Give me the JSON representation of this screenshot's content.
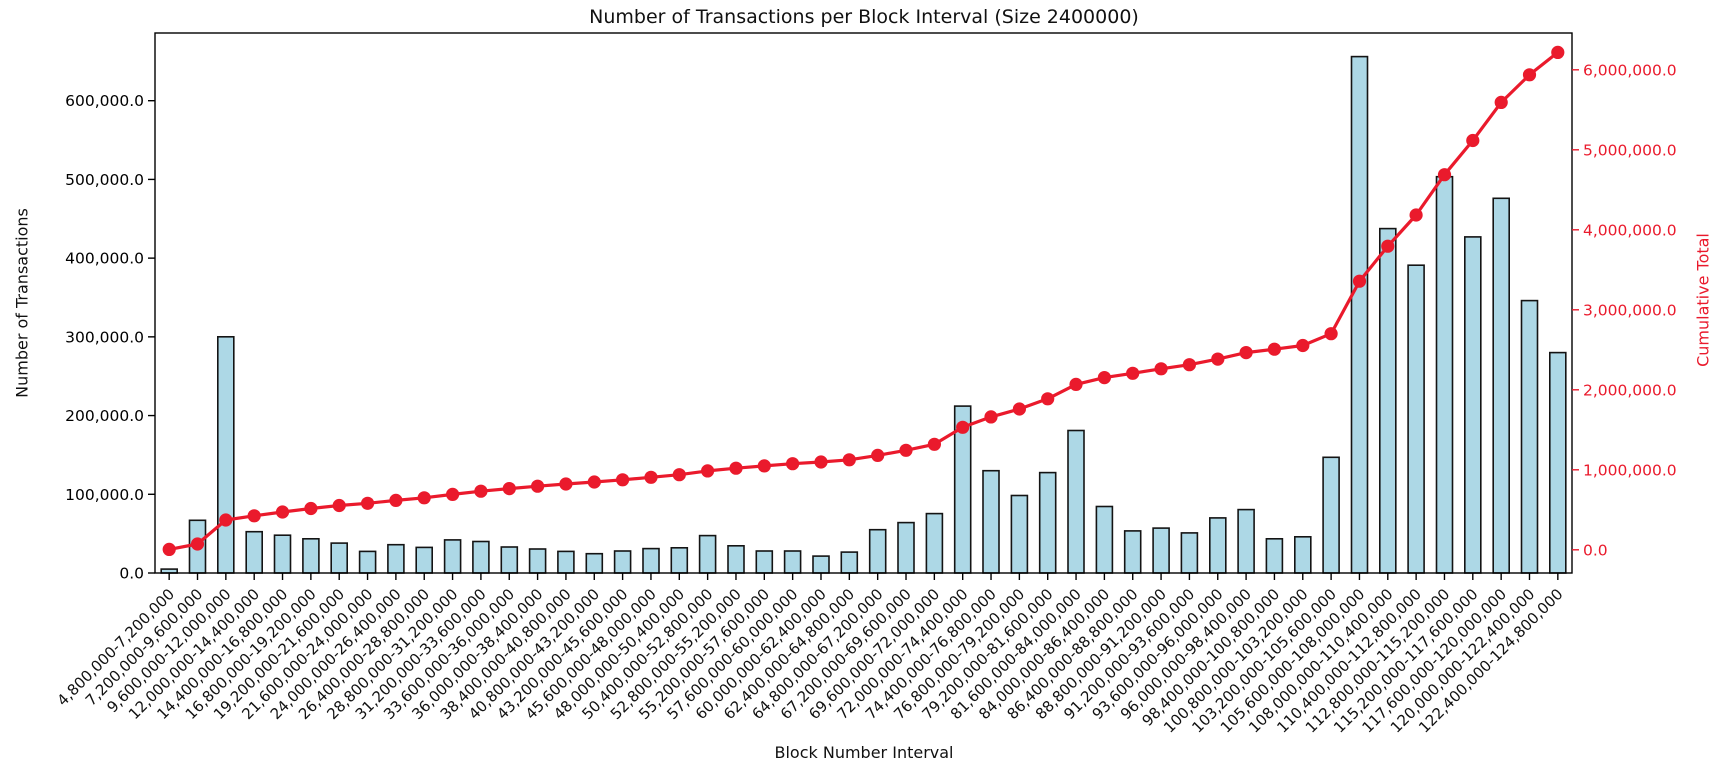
{
  "chart_data": {
    "type": "bar",
    "title": "Number of Transactions per Block Interval (Size 2400000)",
    "xlabel": "Block Number Interval",
    "ylabel": "Number of Transactions",
    "ylabel_right": "Cumulative Total",
    "legend": "none",
    "grid": false,
    "categories": [
      "4,800,000-7,200,000",
      "7,200,000-9,600,000",
      "9,600,000-12,000,000",
      "12,000,000-14,400,000",
      "14,400,000-16,800,000",
      "16,800,000-19,200,000",
      "19,200,000-21,600,000",
      "21,600,000-24,000,000",
      "24,000,000-26,400,000",
      "26,400,000-28,800,000",
      "28,800,000-31,200,000",
      "31,200,000-33,600,000",
      "33,600,000-36,000,000",
      "36,000,000-38,400,000",
      "38,400,000-40,800,000",
      "40,800,000-43,200,000",
      "43,200,000-45,600,000",
      "45,600,000-48,000,000",
      "48,000,000-50,400,000",
      "50,400,000-52,800,000",
      "52,800,000-55,200,000",
      "55,200,000-57,600,000",
      "57,600,000-60,000,000",
      "60,000,000-62,400,000",
      "62,400,000-64,800,000",
      "64,800,000-67,200,000",
      "67,200,000-69,600,000",
      "69,600,000-72,000,000",
      "72,000,000-74,400,000",
      "74,400,000-76,800,000",
      "76,800,000-79,200,000",
      "79,200,000-81,600,000",
      "81,600,000-84,000,000",
      "84,000,000-86,400,000",
      "86,400,000-88,800,000",
      "88,800,000-91,200,000",
      "91,200,000-93,600,000",
      "93,600,000-96,000,000",
      "96,000,000-98,400,000",
      "98,400,000-100,800,000",
      "100,800,000-103,200,000",
      "103,200,000-105,600,000",
      "105,600,000-108,000,000",
      "108,000,000-110,400,000",
      "110,400,000-112,800,000",
      "112,800,000-115,200,000",
      "115,200,000-117,600,000",
      "117,600,000-120,000,000",
      "120,000,000-122,400,000",
      "122,400,000-124,800,000"
    ],
    "series": [
      {
        "name": "Number of Transactions",
        "type": "bar",
        "axis": "left",
        "color": "#add8e6",
        "edge_color": "#141414",
        "values": [
          5000,
          67000,
          300000,
          52500,
          48000,
          43500,
          38000,
          27500,
          36000,
          32500,
          42000,
          40000,
          33000,
          30500,
          27500,
          24500,
          28000,
          31000,
          32000,
          47500,
          34500,
          28000,
          28000,
          21500,
          26500,
          55000,
          64000,
          75500,
          212000,
          130000,
          98500,
          127500,
          181000,
          84500,
          53500,
          57000,
          51000,
          70000,
          80500,
          43500,
          46000,
          147000,
          656000,
          437500,
          391000,
          503500,
          427000,
          476000,
          346000,
          280000
        ]
      },
      {
        "name": "Cumulative Total",
        "type": "line",
        "axis": "right",
        "color": "#ea1a2c",
        "marker": "circle",
        "values": [
          5000,
          72000,
          372000,
          424500,
          472500,
          516000,
          554000,
          581500,
          617500,
          650000,
          692000,
          732000,
          765000,
          795500,
          823000,
          847500,
          875500,
          906500,
          938500,
          986000,
          1020500,
          1048500,
          1076500,
          1098000,
          1124500,
          1179500,
          1243500,
          1319000,
          1531000,
          1661000,
          1759500,
          1887000,
          2068000,
          2152500,
          2206000,
          2263000,
          2314000,
          2384000,
          2464500,
          2508000,
          2554000,
          2701000,
          3357000,
          3794500,
          4185500,
          4689000,
          5116000,
          5592000,
          5938000,
          6218000
        ]
      }
    ],
    "left_axis": {
      "color": "#000000",
      "min": 0,
      "max": 686000,
      "ticks": [
        0,
        100000,
        200000,
        300000,
        400000,
        500000,
        600000
      ],
      "tick_labels": [
        "0.0",
        "100,000.0",
        "200,000.0",
        "300,000.0",
        "400,000.0",
        "500,000.0",
        "600,000.0"
      ]
    },
    "right_axis": {
      "color": "#ea1a2c",
      "min": -290000,
      "max": 6460000,
      "ticks": [
        0,
        1000000,
        2000000,
        3000000,
        4000000,
        5000000,
        6000000
      ],
      "tick_labels": [
        "0.0",
        "1,000,000.0",
        "2,000,000.0",
        "3,000,000.0",
        "4,000,000.0",
        "5,000,000.0",
        "6,000,000.0"
      ]
    }
  }
}
